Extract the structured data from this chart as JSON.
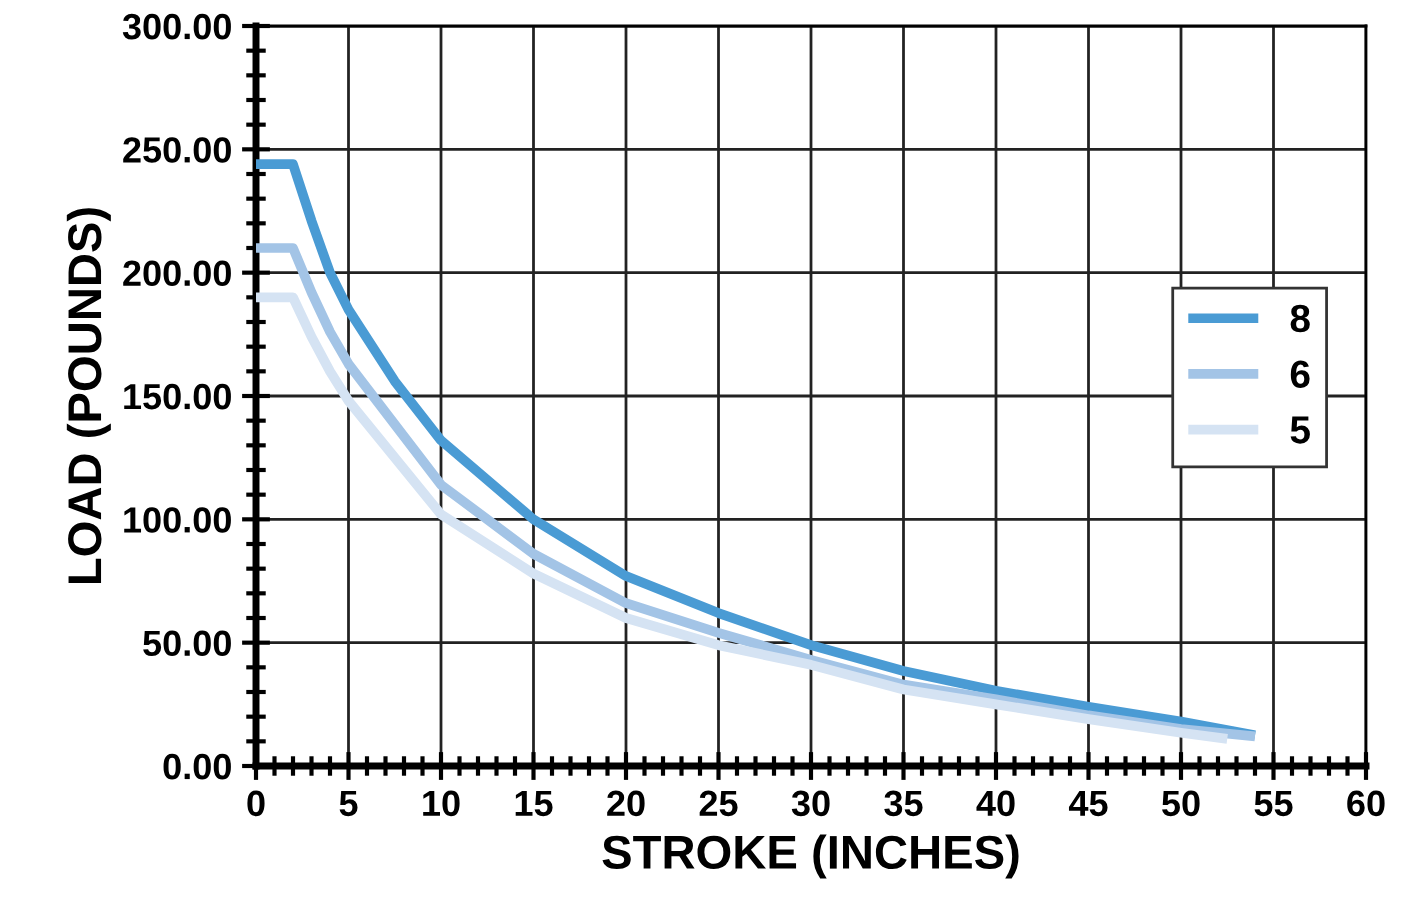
{
  "chart_data": {
    "type": "line",
    "xlabel": "STROKE (INCHES)",
    "ylabel": "LOAD (POUNDS)",
    "xlim": [
      0,
      60
    ],
    "xticks": [
      0,
      5,
      10,
      15,
      20,
      25,
      30,
      35,
      40,
      45,
      50,
      55,
      60
    ],
    "ylim": [
      0,
      300
    ],
    "yticks": [
      {
        "value": 0,
        "label": "0.00"
      },
      {
        "value": 50,
        "label": "50.00"
      },
      {
        "value": 100,
        "label": "100.00"
      },
      {
        "value": 150,
        "label": "150.00"
      },
      {
        "value": 200,
        "label": "200.00"
      },
      {
        "value": 250,
        "label": "250.00"
      },
      {
        "value": 300,
        "label": "300.00"
      }
    ],
    "grid": true,
    "legend": "right",
    "marker": "none",
    "line_style": "solid",
    "series": [
      {
        "name": "8",
        "color": "#4a9bd4",
        "x": [
          0,
          2,
          3,
          4,
          5,
          7.5,
          10,
          15,
          20,
          25,
          30,
          35,
          40,
          45,
          50,
          54
        ],
        "values": [
          244,
          244,
          221,
          200,
          185,
          156,
          132,
          100,
          77,
          62,
          49,
          38.5,
          30.5,
          24,
          18,
          12.5
        ]
      },
      {
        "name": "6",
        "color": "#a3c4e6",
        "x": [
          0,
          2,
          3,
          4,
          5,
          10,
          15,
          20,
          25,
          30,
          35,
          40,
          45,
          50,
          54
        ],
        "values": [
          210,
          210,
          192,
          176,
          163,
          114,
          86,
          66,
          54,
          43,
          33,
          27,
          20.5,
          15,
          12
        ]
      },
      {
        "name": "5",
        "color": "#d5e3f3",
        "x": [
          0,
          2,
          3,
          4,
          5,
          10,
          15,
          20,
          25,
          30,
          35,
          40,
          45,
          50,
          52.5
        ],
        "values": [
          190,
          190,
          174,
          160,
          148,
          102,
          78,
          60,
          49,
          41,
          31,
          25,
          19,
          13.5,
          11
        ]
      }
    ]
  }
}
